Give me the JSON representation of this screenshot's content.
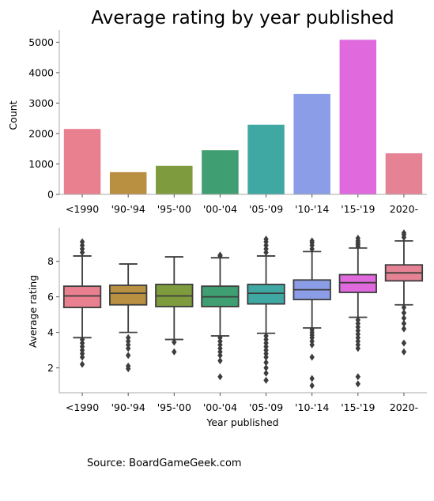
{
  "source_text": "Source: BoardGameGeek.com",
  "chart_data": [
    {
      "type": "bar",
      "title": "Average rating by year published",
      "xlabel": "",
      "ylabel": "Count",
      "ylim": [
        0,
        5400
      ],
      "yticks": [
        0,
        1000,
        2000,
        3000,
        4000,
        5000
      ],
      "categories": [
        "<1990",
        "'90-'94",
        "'95-'00",
        "'00-'04",
        "'05-'09",
        "'10-'14",
        "'15-'19",
        "2020-"
      ],
      "values": [
        2150,
        730,
        940,
        1450,
        2290,
        3300,
        5080,
        1350
      ],
      "colors": [
        "#e8808f",
        "#b98f41",
        "#7e9c3e",
        "#3f9e72",
        "#40a8a3",
        "#8b9de6",
        "#e06add",
        "#e58394"
      ],
      "grid": false
    },
    {
      "type": "box",
      "title": "",
      "xlabel": "Year published",
      "ylabel": "Average rating",
      "ylim": [
        0.6,
        9.9
      ],
      "yticks": [
        2,
        4,
        6,
        8
      ],
      "categories": [
        "<1990",
        "'90-'94",
        "'95-'00",
        "'00-'04",
        "'05-'09",
        "'10-'14",
        "'15-'19",
        "2020-"
      ],
      "colors": [
        "#e8808f",
        "#b98f41",
        "#7e9c3e",
        "#3f9e72",
        "#40a8a3",
        "#8b9de6",
        "#e06add",
        "#e58394"
      ],
      "boxes": [
        {
          "whisker_low": 3.7,
          "q1": 5.4,
          "median": 6.05,
          "q3": 6.6,
          "whisker_high": 8.3,
          "outliers_low": [
            3.6,
            3.4,
            3.2,
            3.0,
            2.8,
            2.6,
            2.2
          ],
          "outliers_high": [
            8.5,
            8.7,
            8.9,
            9.1
          ]
        },
        {
          "whisker_low": 4.0,
          "q1": 5.55,
          "median": 6.2,
          "q3": 6.65,
          "whisker_high": 7.85,
          "outliers_low": [
            3.7,
            3.5,
            3.3,
            3.1,
            2.7,
            2.1,
            1.95
          ],
          "outliers_high": []
        },
        {
          "whisker_low": 3.6,
          "q1": 5.45,
          "median": 6.05,
          "q3": 6.7,
          "whisker_high": 8.25,
          "outliers_low": [
            3.45,
            2.9
          ],
          "outliers_high": []
        },
        {
          "whisker_low": 3.8,
          "q1": 5.45,
          "median": 6.0,
          "q3": 6.6,
          "whisker_high": 8.2,
          "outliers_low": [
            3.7,
            3.5,
            3.3,
            3.1,
            2.9,
            2.7,
            2.4,
            1.5
          ],
          "outliers_high": [
            8.3,
            8.35
          ]
        },
        {
          "whisker_low": 3.95,
          "q1": 5.6,
          "median": 6.2,
          "q3": 6.7,
          "whisker_high": 8.3,
          "outliers_low": [
            3.8,
            3.6,
            3.4,
            3.2,
            3.0,
            2.8,
            2.6,
            2.3,
            2.0,
            1.7,
            1.3
          ],
          "outliers_high": [
            8.5,
            8.7,
            8.9,
            9.1,
            9.25
          ]
        },
        {
          "whisker_low": 4.25,
          "q1": 5.85,
          "median": 6.4,
          "q3": 6.95,
          "whisker_high": 8.55,
          "outliers_low": [
            4.15,
            4.0,
            3.85,
            3.7,
            3.5,
            3.3,
            2.6,
            1.4,
            1.0
          ],
          "outliers_high": [
            8.7,
            8.9,
            9.05,
            9.15
          ]
        },
        {
          "whisker_low": 4.85,
          "q1": 6.25,
          "median": 6.8,
          "q3": 7.25,
          "whisker_high": 8.75,
          "outliers_low": [
            4.7,
            4.5,
            4.3,
            4.1,
            3.9,
            3.7,
            3.5,
            3.3,
            3.1,
            1.5,
            1.1
          ],
          "outliers_high": [
            8.85,
            8.95,
            9.05,
            9.15,
            9.3
          ]
        },
        {
          "whisker_low": 5.55,
          "q1": 6.9,
          "median": 7.35,
          "q3": 7.8,
          "whisker_high": 9.15,
          "outliers_low": [
            5.4,
            5.1,
            4.8,
            4.5,
            4.2,
            3.4,
            2.9
          ],
          "outliers_high": [
            9.35,
            9.5,
            9.6
          ]
        }
      ],
      "grid": false
    }
  ]
}
